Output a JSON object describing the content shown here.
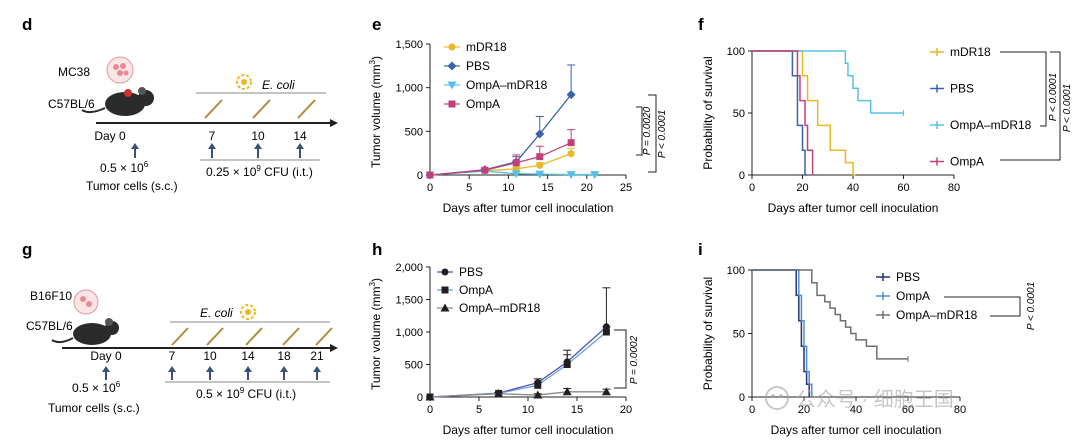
{
  "panels": {
    "d": {
      "letter": "d",
      "cell_line": "MC38",
      "mouse_strain": "C57BL/6",
      "bacteria": "E. coli",
      "days": [
        "Day 0",
        "7",
        "10",
        "14"
      ],
      "tumor_dose": "0.5 × 10",
      "tumor_dose_exp": "6",
      "tumor_label": "Tumor cells (s.c.)",
      "cfu_prefix": "0.25 × 10",
      "cfu_exp": "9",
      "cfu_suffix": " CFU (i.t.)"
    },
    "g": {
      "letter": "g",
      "cell_line": "B16F10",
      "mouse_strain": "C57BL/6",
      "bacteria": "E. coli",
      "days": [
        "Day 0",
        "7",
        "10",
        "14",
        "18",
        "21"
      ],
      "tumor_dose": "0.5 × 10",
      "tumor_dose_exp": "6",
      "tumor_label": "Tumor cells (s.c.)",
      "cfu_prefix": "0.5 × 10",
      "cfu_exp": "9",
      "cfu_suffix": " CFU (i.t.)"
    },
    "e": {
      "letter": "e",
      "ylabel_main": "Tumor volume (mm",
      "ylabel_exp": "3",
      "ylabel_end": ")",
      "stat_inner": "P = 0.0020",
      "stat_outer": "P < 0.0001"
    },
    "f": {
      "letter": "f",
      "stat_left": "P < 0.0001",
      "stat_right": "P < 0.0001"
    },
    "h": {
      "letter": "h",
      "ylabel_main": "Tumor volume (mm",
      "ylabel_exp": "3",
      "ylabel_end": ")",
      "stat": "P = 0.0002"
    },
    "i": {
      "letter": "i",
      "stat": "P < 0.0001"
    }
  },
  "watermark": "公众号 · 细胞王国",
  "colors": {
    "mDR18": "#e8b923",
    "PBS_blue": "#3a63ad",
    "OmpA_mDR18_cyan": "#56c1e8",
    "OmpA_magenta": "#c2407a",
    "PBS_navy": "#2a2f7a",
    "OmpA_lightblue": "#4a90d0",
    "OmpA_mDR18_gray": "#6f6f6f",
    "axis": "#231f20"
  },
  "chart_data": [
    {
      "id": "e",
      "type": "line",
      "xlabel": "Days after tumor cell inoculation",
      "ylabel": "Tumor volume (mm3)",
      "xlim": [
        0,
        25
      ],
      "ylim": [
        0,
        1500
      ],
      "xticks": [
        0,
        5,
        10,
        15,
        20,
        25
      ],
      "yticks": [
        0,
        500,
        1000,
        1500
      ],
      "ytick_labels": [
        "0",
        "500",
        "1,000",
        "1,500"
      ],
      "legend_position": "top-right",
      "series": [
        {
          "name": "mDR18",
          "color": "#e8b923",
          "marker": "circle",
          "x": [
            0,
            7,
            11,
            14,
            18
          ],
          "y": [
            0,
            50,
            70,
            110,
            245
          ],
          "err": [
            0,
            10,
            20,
            30,
            60
          ]
        },
        {
          "name": "PBS",
          "color": "#3a63ad",
          "marker": "diamond",
          "x": [
            0,
            7,
            11,
            14,
            18
          ],
          "y": [
            0,
            60,
            150,
            470,
            920
          ],
          "err": [
            0,
            15,
            60,
            200,
            340
          ]
        },
        {
          "name": "OmpA–mDR18",
          "color": "#56c1e8",
          "marker": "triangle-down",
          "x": [
            0,
            7,
            11,
            14,
            18,
            21
          ],
          "y": [
            0,
            45,
            15,
            10,
            5,
            5
          ],
          "err": [
            0,
            10,
            5,
            5,
            3,
            3
          ]
        },
        {
          "name": "OmpA",
          "color": "#c2407a",
          "marker": "square",
          "x": [
            0,
            7,
            11,
            14,
            18
          ],
          "y": [
            0,
            55,
            140,
            210,
            370
          ],
          "err": [
            0,
            12,
            90,
            120,
            150
          ]
        }
      ]
    },
    {
      "id": "f",
      "type": "line",
      "subtype": "step",
      "xlabel": "Days after tumor cell inoculation",
      "ylabel": "Probability of survival",
      "xlim": [
        0,
        80
      ],
      "ylim": [
        0,
        100
      ],
      "xticks": [
        0,
        20,
        40,
        60,
        80
      ],
      "yticks": [
        0,
        50,
        100
      ],
      "legend_position": "right",
      "series": [
        {
          "name": "mDR18",
          "color": "#e8b923",
          "x": [
            0,
            19,
            20,
            22,
            26,
            30,
            31,
            35,
            37,
            40,
            41
          ],
          "y": [
            100,
            100,
            80,
            60,
            40,
            40,
            20,
            20,
            10,
            0,
            0
          ]
        },
        {
          "name": "PBS",
          "color": "#3a63ad",
          "x": [
            0,
            15,
            16,
            18,
            20,
            21,
            22
          ],
          "y": [
            100,
            100,
            80,
            40,
            20,
            0,
            0
          ]
        },
        {
          "name": "OmpA–mDR18",
          "color": "#56c1e8",
          "x": [
            0,
            35,
            37,
            38,
            40,
            42,
            47,
            60
          ],
          "y": [
            100,
            100,
            90,
            80,
            70,
            60,
            50,
            50
          ]
        },
        {
          "name": "OmpA",
          "color": "#c2407a",
          "x": [
            0,
            17,
            18,
            19,
            21,
            22,
            24
          ],
          "y": [
            100,
            100,
            80,
            60,
            40,
            20,
            0
          ]
        }
      ]
    },
    {
      "id": "h",
      "type": "line",
      "xlabel": "Days after tumor cell inoculation",
      "ylabel": "Tumor volume (mm3)",
      "xlim": [
        0,
        20
      ],
      "ylim": [
        0,
        2000
      ],
      "xticks": [
        0,
        5,
        10,
        15,
        20
      ],
      "yticks": [
        0,
        500,
        1000,
        1500,
        2000
      ],
      "ytick_labels": [
        "0",
        "500",
        "1,000",
        "1,500",
        "2,000"
      ],
      "legend_position": "top-left",
      "series": [
        {
          "name": "PBS",
          "color": "#231f20",
          "line": "#4a4fb0",
          "marker": "circle",
          "x": [
            0,
            7,
            11,
            14,
            18
          ],
          "y": [
            0,
            60,
            220,
            540,
            1080
          ],
          "err": [
            0,
            10,
            60,
            180,
            600
          ]
        },
        {
          "name": "OmpA",
          "color": "#231f20",
          "line": "#6f9fd8",
          "marker": "square",
          "x": [
            0,
            7,
            11,
            14,
            18
          ],
          "y": [
            0,
            55,
            180,
            500,
            1000
          ],
          "err": [
            0,
            10,
            50,
            150,
            80
          ]
        },
        {
          "name": "OmpA–mDR18",
          "color": "#231f20",
          "line": "#8a8a8a",
          "marker": "triangle",
          "x": [
            0,
            7,
            11,
            14,
            18
          ],
          "y": [
            0,
            50,
            30,
            80,
            80
          ],
          "err": [
            0,
            10,
            20,
            50,
            40
          ]
        }
      ]
    },
    {
      "id": "i",
      "type": "line",
      "subtype": "step",
      "xlabel": "Days after tumor cell inoculation",
      "ylabel": "Probability of survival",
      "xlim": [
        0,
        80
      ],
      "ylim": [
        0,
        100
      ],
      "xticks": [
        0,
        20,
        40,
        60,
        80
      ],
      "yticks": [
        0,
        50,
        100
      ],
      "legend_position": "top-right",
      "series": [
        {
          "name": "PBS",
          "color": "#2a2f7a",
          "x": [
            0,
            16,
            17,
            18,
            19,
            20,
            21,
            22
          ],
          "y": [
            100,
            100,
            80,
            60,
            40,
            20,
            10,
            0
          ]
        },
        {
          "name": "OmpA",
          "color": "#4a90d0",
          "x": [
            0,
            17,
            18,
            19,
            20,
            21,
            22,
            23
          ],
          "y": [
            100,
            100,
            80,
            60,
            40,
            20,
            10,
            0
          ]
        },
        {
          "name": "OmpA–mDR18",
          "color": "#6f6f6f",
          "x": [
            0,
            20,
            23,
            25,
            28,
            30,
            32,
            34,
            36,
            38,
            40,
            44,
            48,
            60
          ],
          "y": [
            100,
            100,
            90,
            80,
            75,
            70,
            65,
            60,
            55,
            50,
            45,
            40,
            30,
            30
          ]
        }
      ]
    }
  ]
}
